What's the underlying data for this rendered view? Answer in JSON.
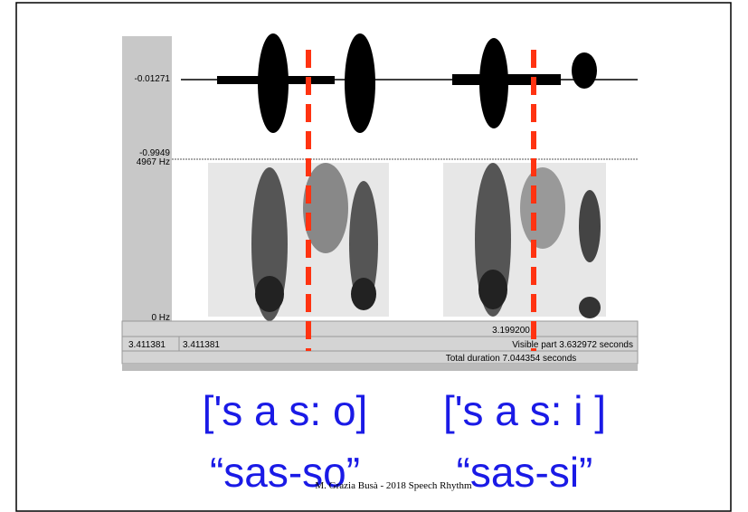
{
  "praat": {
    "waveform_max": "-0.01271",
    "waveform_min": "-0.9949",
    "freq_max": "4967 Hz",
    "freq_min": "0 Hz",
    "cursor_time": "3.199200",
    "start_time_left": "3.411381",
    "start_time": "3.411381",
    "visible_part": "Visible part 3.632972 seconds",
    "total_duration": "Total duration 7.044354 seconds"
  },
  "transcription": {
    "ipa": [
      "['s a s: o]",
      "['s a s: i ]"
    ],
    "orthography": [
      "“sas-so”",
      "“sas-si”"
    ]
  },
  "footer": "M. Grazia Busà - 2018  Speech Rhythm"
}
